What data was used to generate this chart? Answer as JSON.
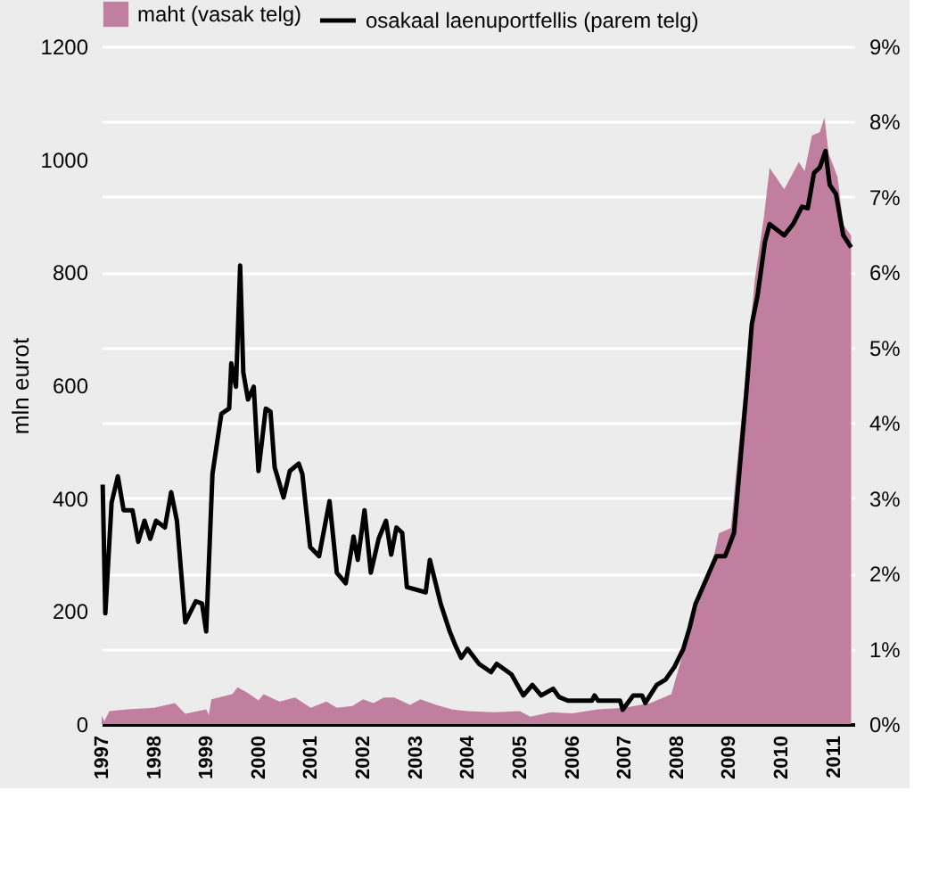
{
  "chart_data": {
    "type": "area",
    "ylabel": "mln eurot",
    "legend": "top",
    "grid": "y2",
    "xlim": [
      1997,
      2011.4
    ],
    "xticks": [
      1997,
      1998,
      1999,
      2000,
      2001,
      2002,
      2003,
      2004,
      2005,
      2006,
      2007,
      2008,
      2009,
      2010,
      2011
    ],
    "ylim": [
      0,
      1200
    ],
    "yticks": [
      0,
      200,
      400,
      600,
      800,
      1000,
      1200
    ],
    "y2lim": [
      0,
      9
    ],
    "y2ticks": [
      {
        "value": 0,
        "label": "0%"
      },
      {
        "value": 1,
        "label": "1%"
      },
      {
        "value": 2,
        "label": "2%"
      },
      {
        "value": 3,
        "label": "3%"
      },
      {
        "value": 4,
        "label": "4%"
      },
      {
        "value": 5,
        "label": "5%"
      },
      {
        "value": 6,
        "label": "6%"
      },
      {
        "value": 7,
        "label": "7%"
      },
      {
        "value": 8,
        "label": "8%"
      },
      {
        "value": 9,
        "label": "9%"
      }
    ],
    "series": [
      {
        "name": "maht (vasak telg)",
        "color": "#c07f9e",
        "x": [
          1997.0,
          1997.05,
          1997.15,
          1997.5,
          1998.0,
          1998.4,
          1998.6,
          1999.0,
          1999.05,
          1999.1,
          1999.5,
          1999.6,
          1999.8,
          2000.0,
          2000.1,
          2000.4,
          2000.7,
          2001.0,
          2001.3,
          2001.5,
          2001.8,
          2002.0,
          2002.2,
          2002.4,
          2002.6,
          2002.9,
          2003.1,
          2003.4,
          2003.7,
          2004.0,
          2004.5,
          2005.0,
          2005.2,
          2005.6,
          2006.0,
          2006.5,
          2007.0,
          2007.5,
          2007.9,
          2008.2,
          2008.4,
          2008.64,
          2008.81,
          2009.04,
          2009.15,
          2009.33,
          2009.5,
          2009.67,
          2009.78,
          2010.06,
          2010.34,
          2010.45,
          2010.59,
          2010.74,
          2010.83,
          2010.91,
          2011.08,
          2011.19,
          2011.34
        ],
        "values": [
          15,
          5,
          23,
          26,
          29,
          37,
          18,
          26,
          16,
          44,
          53,
          65,
          55,
          42,
          53,
          40,
          47,
          29,
          40,
          29,
          32,
          44,
          37,
          47,
          47,
          34,
          44,
          34,
          26,
          23,
          21,
          23,
          13,
          21,
          19,
          26,
          29,
          37,
          53,
          150,
          210,
          265,
          338,
          347,
          455,
          622,
          789,
          897,
          985,
          947,
          995,
          979,
          1042,
          1048,
          1074,
          1010,
          969,
          884,
          865
        ]
      },
      {
        "name": "osakaal laenuportfellis (parem telg)",
        "type": "line",
        "axis": "y2",
        "color": "#000000",
        "x": [
          1997.02,
          1997.07,
          1997.19,
          1997.31,
          1997.42,
          1997.59,
          1997.7,
          1997.82,
          1997.93,
          1998.04,
          1998.21,
          1998.33,
          1998.44,
          1998.6,
          1998.8,
          1998.92,
          1999.0,
          1999.12,
          1999.29,
          1999.44,
          1999.48,
          1999.57,
          1999.65,
          1999.71,
          1999.8,
          1999.91,
          2000.0,
          2000.14,
          2000.23,
          2000.31,
          2000.48,
          2000.6,
          2000.77,
          2000.84,
          2000.99,
          2001.16,
          2001.36,
          2001.5,
          2001.67,
          2001.82,
          2001.9,
          2002.03,
          2002.15,
          2002.3,
          2002.44,
          2002.54,
          2002.64,
          2002.75,
          2002.84,
          2003.2,
          2003.28,
          2003.49,
          2003.66,
          2003.77,
          2003.88,
          2004.0,
          2004.22,
          2004.45,
          2004.56,
          2004.84,
          2005.07,
          2005.24,
          2005.41,
          2005.64,
          2005.75,
          2005.92,
          2006.38,
          2006.43,
          2006.5,
          2006.92,
          2006.97,
          2007.17,
          2007.34,
          2007.4,
          2007.62,
          2007.79,
          2007.96,
          2008.13,
          2008.25,
          2008.36,
          2008.76,
          2008.93,
          2009.1,
          2009.21,
          2009.33,
          2009.44,
          2009.55,
          2009.69,
          2009.78,
          2010.06,
          2010.23,
          2010.4,
          2010.51,
          2010.63,
          2010.74,
          2010.85,
          2010.93,
          2011.05,
          2011.19,
          2011.34
        ],
        "values": [
          3.18,
          1.47,
          2.94,
          3.29,
          2.84,
          2.84,
          2.42,
          2.7,
          2.46,
          2.7,
          2.61,
          3.08,
          2.7,
          1.35,
          1.63,
          1.6,
          1.23,
          3.32,
          4.12,
          4.19,
          4.79,
          4.48,
          6.09,
          4.67,
          4.31,
          4.48,
          3.36,
          4.19,
          4.15,
          3.41,
          3.01,
          3.36,
          3.46,
          3.32,
          2.35,
          2.23,
          2.96,
          2.01,
          1.87,
          2.49,
          2.18,
          2.84,
          2.01,
          2.46,
          2.7,
          2.25,
          2.61,
          2.54,
          1.82,
          1.75,
          2.18,
          1.59,
          1.23,
          1.04,
          0.88,
          1.0,
          0.8,
          0.69,
          0.8,
          0.66,
          0.38,
          0.52,
          0.38,
          0.47,
          0.36,
          0.31,
          0.31,
          0.38,
          0.31,
          0.31,
          0.19,
          0.38,
          0.38,
          0.28,
          0.52,
          0.59,
          0.76,
          1.0,
          1.28,
          1.59,
          2.23,
          2.23,
          2.54,
          3.41,
          4.36,
          5.31,
          5.69,
          6.4,
          6.64,
          6.49,
          6.64,
          6.87,
          6.85,
          7.32,
          7.39,
          7.61,
          7.16,
          7.04,
          6.49,
          6.33
        ]
      }
    ]
  }
}
